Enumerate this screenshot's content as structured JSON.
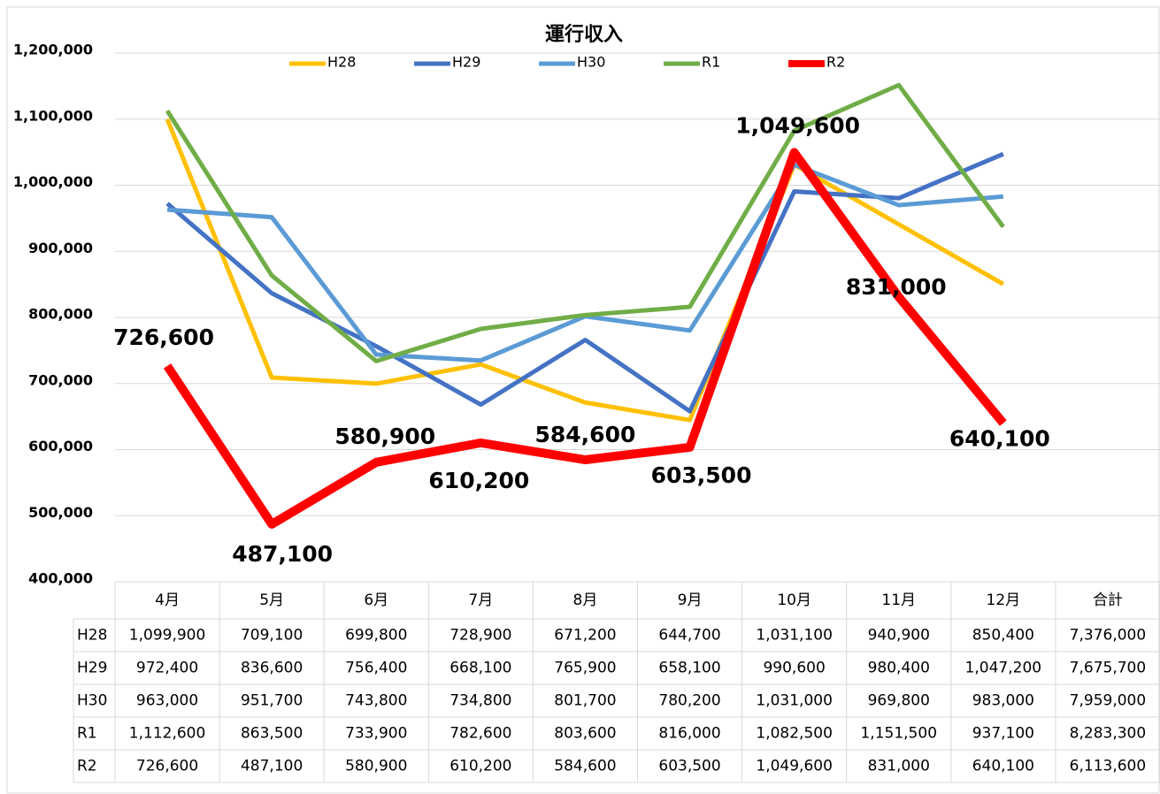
{
  "chart_data": {
    "type": "line",
    "title": "運行収入",
    "categories": [
      "4月",
      "5月",
      "6月",
      "7月",
      "8月",
      "9月",
      "10月",
      "11月",
      "12月"
    ],
    "total_header": "合計",
    "ylim": [
      400000,
      1200000
    ],
    "yticks": [
      {
        "value": 400000,
        "label": "400,000"
      },
      {
        "value": 500000,
        "label": "500,000"
      },
      {
        "value": 600000,
        "label": "600,000"
      },
      {
        "value": 700000,
        "label": "700,000"
      },
      {
        "value": 800000,
        "label": "800,000"
      },
      {
        "value": 900000,
        "label": "900,000"
      },
      {
        "value": 1000000,
        "label": "1,000,000"
      },
      {
        "value": 1100000,
        "label": "1,100,000"
      },
      {
        "value": 1200000,
        "label": "1,200,000"
      }
    ],
    "grid": true,
    "legend": "top",
    "series": [
      {
        "name": "H28",
        "color": "#ffc000",
        "values": [
          1099900,
          709100,
          699800,
          728900,
          671200,
          644700,
          1031100,
          940900,
          850400
        ],
        "value_labels": [
          "1,099,900",
          "709,100",
          "699,800",
          "728,900",
          "671,200",
          "644,700",
          "1,031,100",
          "940,900",
          "850,400"
        ],
        "total": 7376000,
        "total_label": "7,376,000"
      },
      {
        "name": "H29",
        "color": "#4472c4",
        "values": [
          972400,
          836600,
          756400,
          668100,
          765900,
          658100,
          990600,
          980400,
          1047200
        ],
        "value_labels": [
          "972,400",
          "836,600",
          "756,400",
          "668,100",
          "765,900",
          "658,100",
          "990,600",
          "980,400",
          "1,047,200"
        ],
        "total": 7675700,
        "total_label": "7,675,700"
      },
      {
        "name": "H30",
        "color": "#5b9bd5",
        "values": [
          963000,
          951700,
          743800,
          734800,
          801700,
          780200,
          1031000,
          969800,
          983000
        ],
        "value_labels": [
          "963,000",
          "951,700",
          "743,800",
          "734,800",
          "801,700",
          "780,200",
          "1,031,000",
          "969,800",
          "983,000"
        ],
        "total": 7959000,
        "total_label": "7,959,000"
      },
      {
        "name": "R1",
        "color": "#70ad47",
        "values": [
          1112600,
          863500,
          733900,
          782600,
          803600,
          816000,
          1082500,
          1151500,
          937100
        ],
        "value_labels": [
          "1,112,600",
          "863,500",
          "733,900",
          "782,600",
          "803,600",
          "816,000",
          "1,082,500",
          "1,151,500",
          "937,100"
        ],
        "total": 8283300,
        "total_label": "8,283,300"
      },
      {
        "name": "R2",
        "color": "#ff0000",
        "data_labels": true,
        "values": [
          726600,
          487100,
          580900,
          610200,
          584600,
          603500,
          1049600,
          831000,
          640100
        ],
        "value_labels": [
          "726,600",
          "487,100",
          "580,900",
          "610,200",
          "584,600",
          "603,500",
          "1,049,600",
          "831,000",
          "640,100"
        ],
        "total": 6113600,
        "total_label": "6,113,600"
      }
    ]
  }
}
